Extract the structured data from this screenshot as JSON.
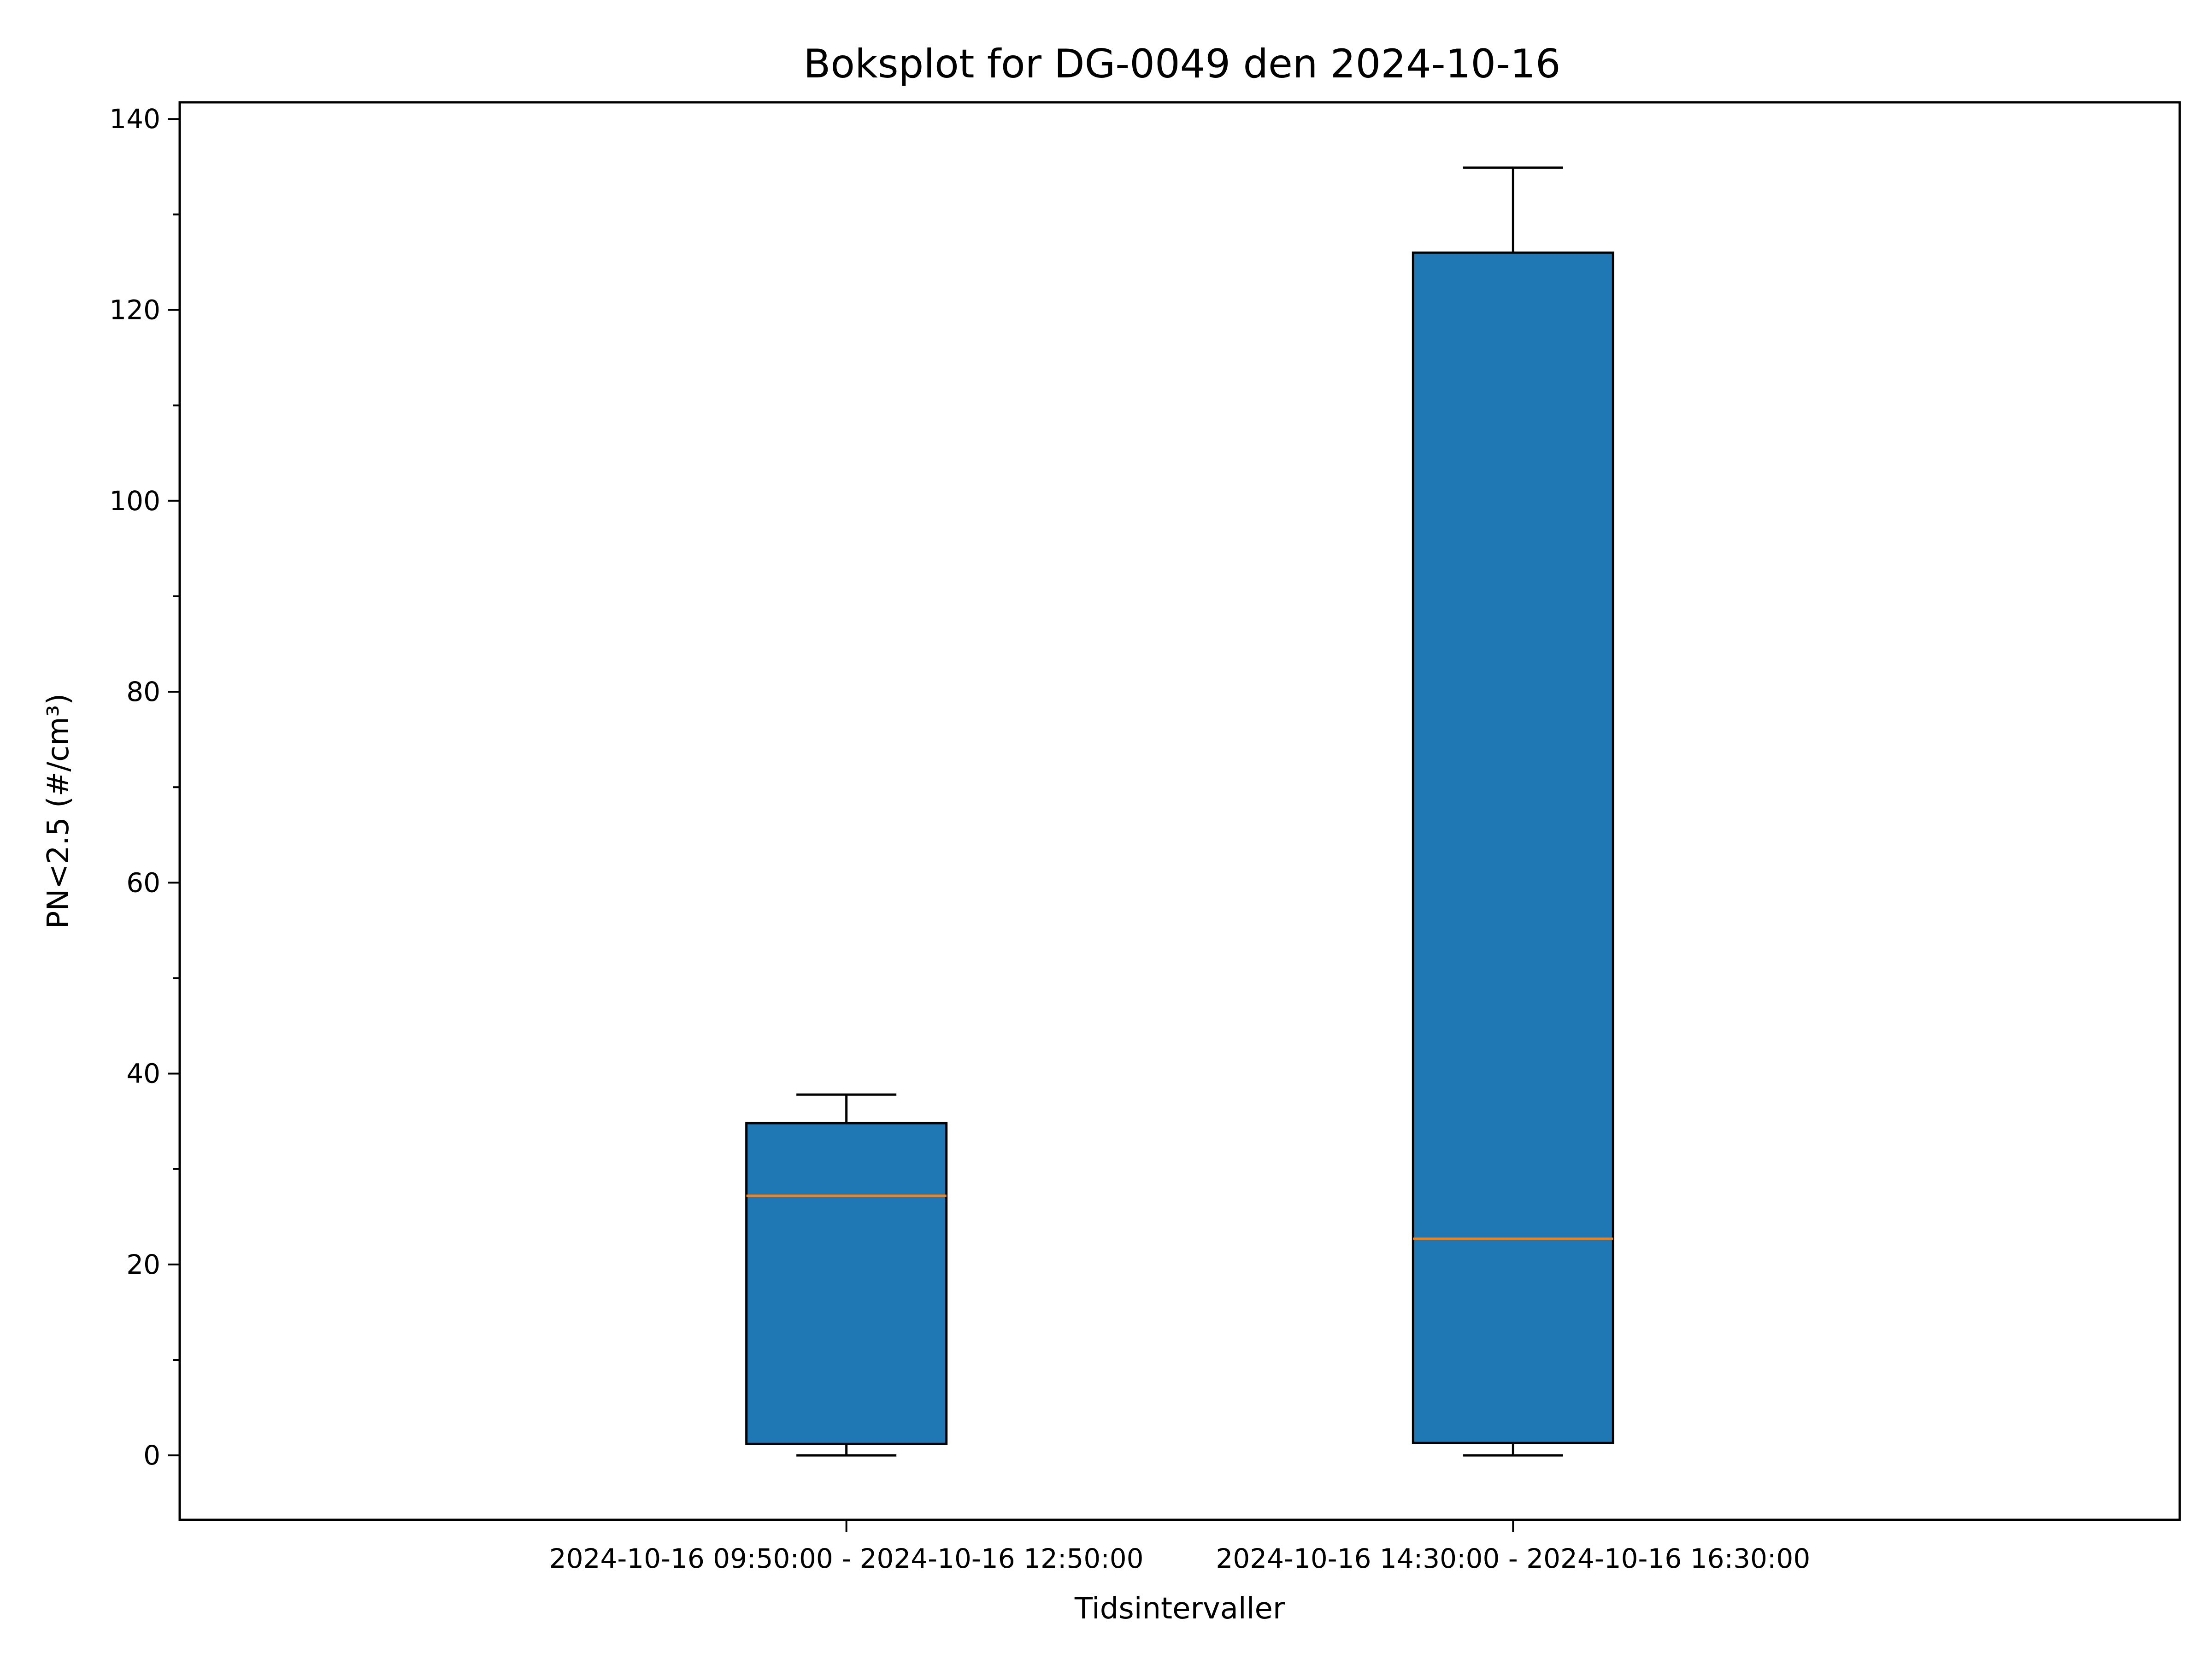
{
  "chart_data": {
    "type": "box",
    "title": "Boksplot for DG-0049 den 2024-10-16",
    "xlabel": "Tidsintervaller",
    "ylabel": "PN<2.5 (#/cm³)",
    "ylim": [
      -6.75,
      141.75
    ],
    "yticks": [
      0,
      20,
      40,
      60,
      80,
      100,
      120,
      140
    ],
    "grid": false,
    "categories": [
      "2024-10-16 09:50:00 - 2024-10-16 12:50:00",
      "2024-10-16 14:30:00 - 2024-10-16 16:30:00"
    ],
    "boxes": [
      {
        "whisker_low": 0,
        "q1": 1.2,
        "median": 27.2,
        "q3": 34.8,
        "whisker_high": 37.8
      },
      {
        "whisker_low": 0,
        "q1": 1.3,
        "median": 22.7,
        "q3": 126.0,
        "whisker_high": 134.9
      }
    ],
    "colors": {
      "box_fill": "#1f77b4",
      "median": "#ff7f0e",
      "line": "#000000"
    }
  }
}
